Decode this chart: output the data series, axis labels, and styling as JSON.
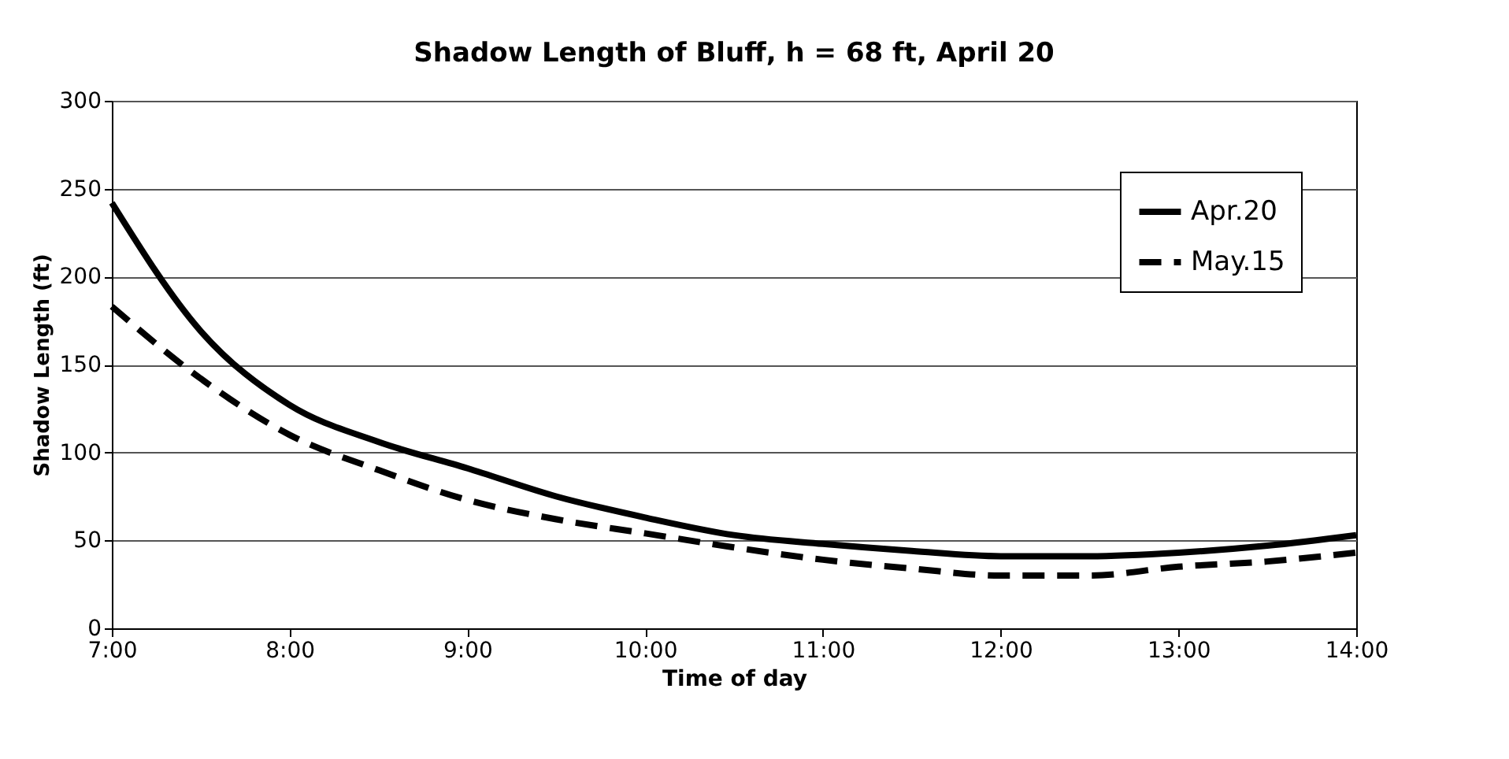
{
  "chart_data": {
    "type": "line",
    "title": "Shadow Length of Bluff, h = 68 ft, April 20",
    "xlabel": "Time of day",
    "ylabel": "Shadow Length (ft)",
    "x": [
      7,
      7.5,
      8,
      8.5,
      9,
      9.5,
      10,
      10.5,
      11,
      11.5,
      12,
      12.5,
      13,
      13.5,
      14
    ],
    "series": [
      {
        "name": "Apr.20",
        "color": "#000000",
        "line_style": "solid",
        "values": [
          242,
          169,
          127,
          106,
          91,
          75,
          63,
          53,
          48,
          44,
          41,
          41,
          43,
          47,
          53
        ]
      },
      {
        "name": "May.15",
        "color": "#000000",
        "line_style": "dashed",
        "values": [
          183,
          142,
          110,
          90,
          73,
          62,
          54,
          46,
          39,
          34,
          30,
          30,
          35,
          38,
          43
        ]
      }
    ],
    "xlim": [
      7,
      14
    ],
    "xticks": [
      {
        "value": 7,
        "label": "7:00"
      },
      {
        "value": 8,
        "label": "8:00"
      },
      {
        "value": 9,
        "label": "9:00"
      },
      {
        "value": 10,
        "label": "10:00"
      },
      {
        "value": 11,
        "label": "11:00"
      },
      {
        "value": 12,
        "label": "12:00"
      },
      {
        "value": 13,
        "label": "13:00"
      },
      {
        "value": 14,
        "label": "14:00"
      }
    ],
    "ylim": [
      0,
      300
    ],
    "yticks": [
      0,
      50,
      100,
      150,
      200,
      250,
      300
    ],
    "grid": "y",
    "legend": "top right",
    "marker": "none"
  }
}
